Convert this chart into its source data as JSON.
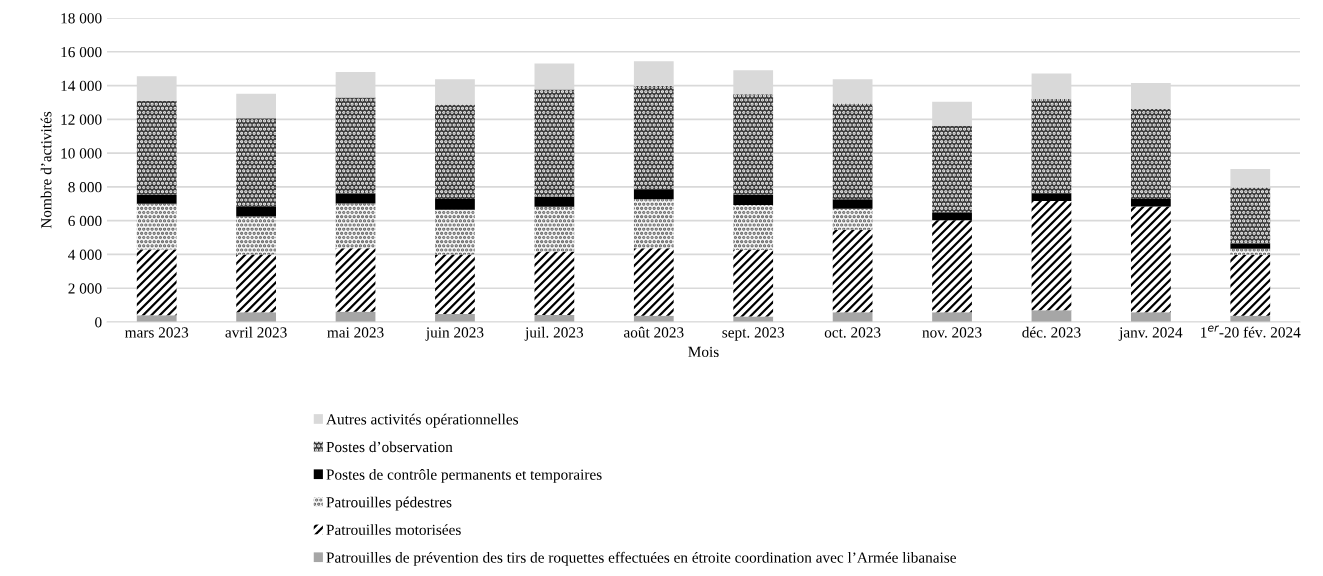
{
  "chart_data": {
    "type": "bar",
    "stacked": true,
    "xlabel": "Mois",
    "ylabel": "Nombre d’activités",
    "categories": [
      "mars 2023",
      "avril 2023",
      "mai 2023",
      "juin 2023",
      "juil. 2023",
      "août 2023",
      "sept. 2023",
      "oct. 2023",
      "nov. 2023",
      "déc. 2023",
      "janv. 2024",
      "1$^{er}$-20 fév. 2024"
    ],
    "series": [
      {
        "name": "Patrouilles de prévention des tirs de roquettes effectuées en étroite coordination avec l’Armée libanaise",
        "color": "#a6a6a6",
        "values": [
          400,
          570,
          610,
          470,
          410,
          370,
          330,
          570,
          570,
          690,
          570,
          370
        ]
      },
      {
        "name": "Patrouilles motorisées",
        "color": "#ffffff",
        "values": [
          3900,
          3430,
          3760,
          3530,
          3770,
          4000,
          3940,
          4890,
          5460,
          6480,
          6270,
          3610
        ]
      },
      {
        "name": "Patrouilles pédestres",
        "color": "#f4f4f4",
        "values": [
          2700,
          2240,
          2640,
          2640,
          2640,
          2900,
          2660,
          1240,
          0,
          0,
          0,
          350
        ]
      },
      {
        "name": "Postes de contrôle permanents et temporaires",
        "color": "#000000",
        "values": [
          550,
          570,
          580,
          650,
          610,
          550,
          620,
          570,
          470,
          450,
          450,
          320
        ]
      },
      {
        "name": "Postes d’observation",
        "color": "#3a3a3a",
        "values": [
          5550,
          5260,
          5700,
          5590,
          6340,
          6150,
          5940,
          5670,
          5100,
          5580,
          5320,
          3310
        ]
      },
      {
        "name": "Autres activités opérationnelles",
        "color": "#d9d9d9",
        "values": [
          1450,
          1440,
          1520,
          1500,
          1540,
          1470,
          1420,
          1440,
          1440,
          1520,
          1540,
          1100
        ]
      }
    ],
    "ylim": [
      0,
      18000
    ],
    "yticks": [
      0,
      {
        "value": 2000,
        "label": "2 000"
      },
      {
        "value": 4000,
        "label": "4 000"
      },
      {
        "value": 6000,
        "label": "6 000"
      },
      {
        "value": 8000,
        "label": "8 000"
      },
      {
        "value": 10000,
        "label": "10 000"
      },
      {
        "value": 12000,
        "label": "12 000"
      },
      {
        "value": 14000,
        "label": "14 000"
      },
      {
        "value": 16000,
        "label": "16 000"
      },
      {
        "value": 18000,
        "label": "18 000"
      }
    ],
    "grid": "y",
    "legend": "bottom"
  }
}
